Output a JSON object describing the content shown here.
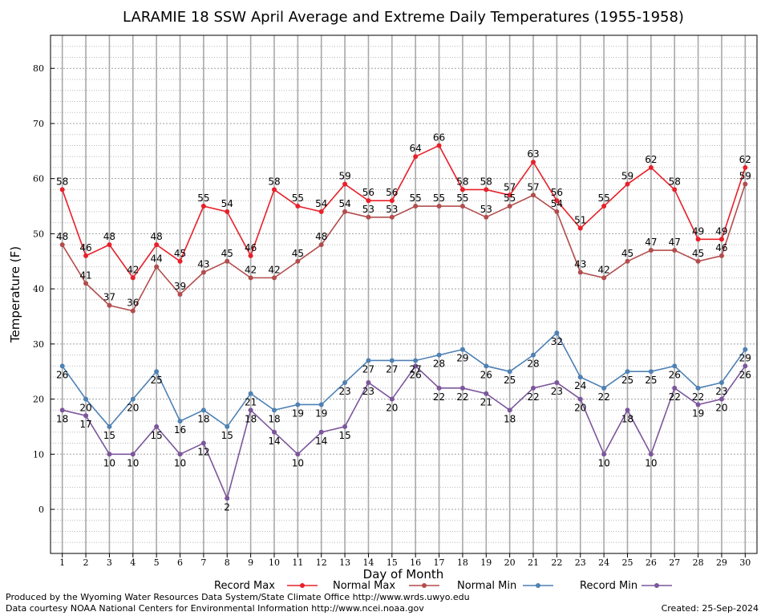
{
  "chart_data": {
    "type": "line",
    "title": "LARAMIE 18 SSW April Average and Extreme Daily Temperatures (1955-1958)",
    "xlabel": "Day of Month",
    "ylabel": "Temperature (F)",
    "ylim": [
      -8,
      86
    ],
    "xlim": [
      0.5,
      30.5
    ],
    "yticks": [
      0,
      10,
      20,
      30,
      40,
      50,
      60,
      70,
      80
    ],
    "x": [
      1,
      2,
      3,
      4,
      5,
      6,
      7,
      8,
      9,
      10,
      11,
      12,
      13,
      14,
      15,
      16,
      17,
      18,
      19,
      20,
      21,
      22,
      23,
      24,
      25,
      26,
      27,
      28,
      29,
      30
    ],
    "grid": true,
    "legend_position": "bottom",
    "series": [
      {
        "name": "Record Max",
        "color": "#e8202a",
        "label_pos": "above",
        "values": [
          58,
          46,
          48,
          42,
          48,
          45,
          55,
          54,
          46,
          58,
          55,
          54,
          59,
          56,
          56,
          64,
          66,
          58,
          58,
          57,
          63,
          56,
          51,
          55,
          59,
          62,
          58,
          49,
          49,
          62
        ]
      },
      {
        "name": "Normal Max",
        "color": "#b24d4d",
        "label_pos": "above",
        "values": [
          48,
          41,
          37,
          36,
          44,
          39,
          43,
          45,
          42,
          42,
          45,
          48,
          54,
          53,
          53,
          55,
          55,
          55,
          53,
          55,
          57,
          54,
          43,
          42,
          45,
          47,
          47,
          45,
          46,
          59
        ]
      },
      {
        "name": "Normal Min",
        "color": "#4f81b3",
        "label_pos": "below",
        "values": [
          26,
          20,
          15,
          20,
          25,
          16,
          18,
          15,
          21,
          18,
          19,
          19,
          23,
          27,
          27,
          27,
          28,
          29,
          26,
          25,
          28,
          32,
          24,
          22,
          25,
          25,
          26,
          22,
          23,
          29
        ]
      },
      {
        "name": "Record Min",
        "color": "#7b569b",
        "label_pos": "below",
        "values": [
          18,
          17,
          10,
          10,
          15,
          10,
          12,
          2,
          18,
          14,
          10,
          14,
          15,
          23,
          20,
          26,
          22,
          22,
          21,
          18,
          22,
          23,
          20,
          10,
          18,
          10,
          22,
          19,
          20,
          26
        ]
      }
    ]
  },
  "footer": {
    "credit_line1": "Produced by the Wyoming Water Resources Data System/State Climate Office http://www.wrds.uwyo.edu",
    "credit_line2": "Data courtesy NOAA National Centers for Environmental Information http://www.ncei.noaa.gov",
    "created": "Created:  25-Sep-2024"
  }
}
